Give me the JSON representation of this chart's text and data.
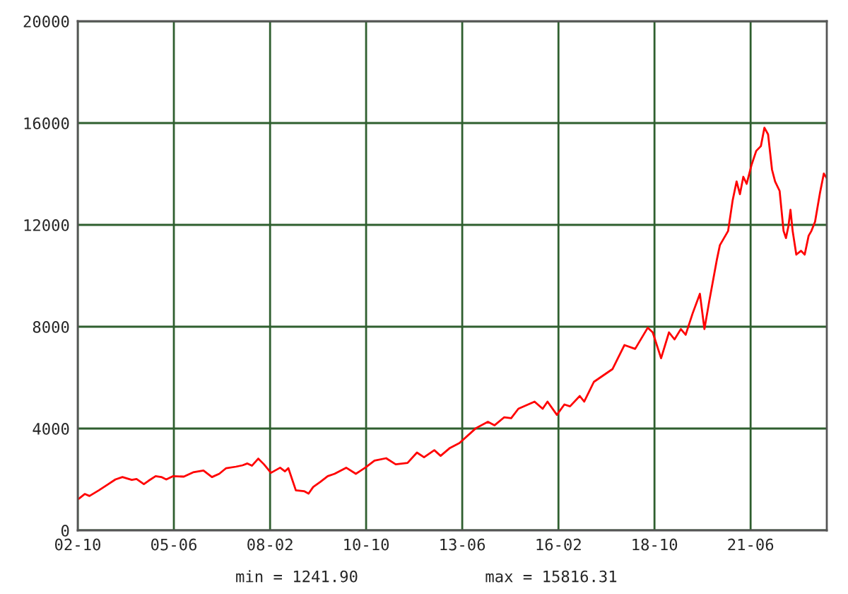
{
  "chart_data": {
    "type": "line",
    "x": [
      "2002-10-11",
      "2002-12-11",
      "2003-01-28",
      "2003-05-03",
      "2003-08-07",
      "2003-10-18",
      "2003-12-28",
      "2004-04-01",
      "2004-05-19",
      "2004-08-01",
      "2004-09-16",
      "2004-11-28",
      "2005-01-25",
      "2005-03-16",
      "2005-05-22",
      "2005-09-10",
      "2005-12-13",
      "2006-03-28",
      "2006-06-22",
      "2006-09-04",
      "2006-11-13",
      "2007-02-19",
      "2007-04-28",
      "2007-06-16",
      "2007-08-01",
      "2007-10-04",
      "2007-12-01",
      "2008-02-10",
      "2008-05-13",
      "2008-07-01",
      "2008-08-04",
      "2008-10-19",
      "2009-01-10",
      "2009-02-25",
      "2009-04-13",
      "2009-06-25",
      "2009-09-07",
      "2009-11-16",
      "2010-03-13",
      "2010-06-19",
      "2010-09-22",
      "2010-12-25",
      "2011-04-22",
      "2011-07-28",
      "2011-11-25",
      "2012-02-28",
      "2012-05-10",
      "2012-08-22",
      "2012-10-25",
      "2013-01-28",
      "2013-05-04",
      "2013-10-19",
      "2014-02-16",
      "2014-04-25",
      "2014-08-01",
      "2014-10-10",
      "2014-12-22",
      "2015-06-04",
      "2015-08-25",
      "2015-10-13",
      "2016-01-16",
      "2016-04-01",
      "2016-05-28",
      "2016-09-04",
      "2016-10-19",
      "2017-01-25",
      "2017-08-01",
      "2017-12-01",
      "2018-03-19",
      "2018-07-25",
      "2018-09-13",
      "2018-12-07",
      "2019-02-25",
      "2019-04-22",
      "2019-06-25",
      "2019-08-13",
      "2019-10-22",
      "2020-01-04",
      "2020-02-19",
      "2020-04-07",
      "2020-06-25",
      "2020-07-25",
      "2020-10-16",
      "2020-12-01",
      "2021-01-10",
      "2021-02-13",
      "2021-03-19",
      "2021-04-22",
      "2021-06-10",
      "2021-07-28",
      "2021-09-13",
      "2021-10-19",
      "2021-11-25",
      "2022-01-04",
      "2022-02-04",
      "2022-03-22",
      "2022-05-01",
      "2022-05-25",
      "2022-06-19",
      "2022-07-10",
      "2022-08-01",
      "2022-09-07",
      "2022-10-25",
      "2022-12-01",
      "2023-01-10",
      "2023-02-07",
      "2023-03-16",
      "2023-05-04",
      "2023-06-13",
      "2023-07-13"
    ],
    "series": [
      {
        "color": "#ff0000",
        "values": [
          1242,
          1428,
          1350,
          1572,
          1815,
          2000,
          2094,
          1983,
          2017,
          1815,
          1944,
          2128,
          2094,
          2000,
          2128,
          2111,
          2278,
          2350,
          2094,
          2222,
          2444,
          2500,
          2556,
          2628,
          2539,
          2817,
          2594,
          2261,
          2461,
          2317,
          2444,
          1572,
          1539,
          1444,
          1706,
          1906,
          2128,
          2222,
          2461,
          2222,
          2461,
          2739,
          2833,
          2594,
          2650,
          3056,
          2872,
          3150,
          2928,
          3239,
          3428,
          4017,
          4261,
          4128,
          4444,
          4406,
          4778,
          5056,
          4778,
          5056,
          4539,
          4944,
          4872,
          5278,
          5056,
          5833,
          6333,
          7278,
          7128,
          7961,
          7778,
          6761,
          7778,
          7500,
          7906,
          7683,
          8517,
          9294,
          7906,
          8983,
          10650,
          11206,
          11761,
          12961,
          13706,
          13206,
          13889,
          13611,
          14350,
          14906,
          15094,
          15816,
          15556,
          14167,
          13706,
          13333,
          11761,
          11483,
          11944,
          12594,
          11761,
          10833,
          10983,
          10833,
          11572,
          11761,
          12128,
          13239,
          14017,
          13833
        ]
      }
    ],
    "xlim": [
      "2002-10-01",
      "2023-07-13"
    ],
    "xticks": [
      {
        "value": "2002-10-01",
        "label": "02-10"
      },
      {
        "value": "2005-06-01",
        "label": "05-06"
      },
      {
        "value": "2008-02-01",
        "label": "08-02"
      },
      {
        "value": "2010-10-01",
        "label": "10-10"
      },
      {
        "value": "2013-06-01",
        "label": "13-06"
      },
      {
        "value": "2016-02-01",
        "label": "16-02"
      },
      {
        "value": "2018-10-01",
        "label": "18-10"
      },
      {
        "value": "2021-06-01",
        "label": "21-06"
      }
    ],
    "ylim": [
      0,
      20000
    ],
    "yticks": [
      0,
      4000,
      8000,
      12000,
      16000,
      20000
    ],
    "grid": true,
    "annotations": [
      "min = 1241.90",
      "max = 15816.31"
    ]
  }
}
